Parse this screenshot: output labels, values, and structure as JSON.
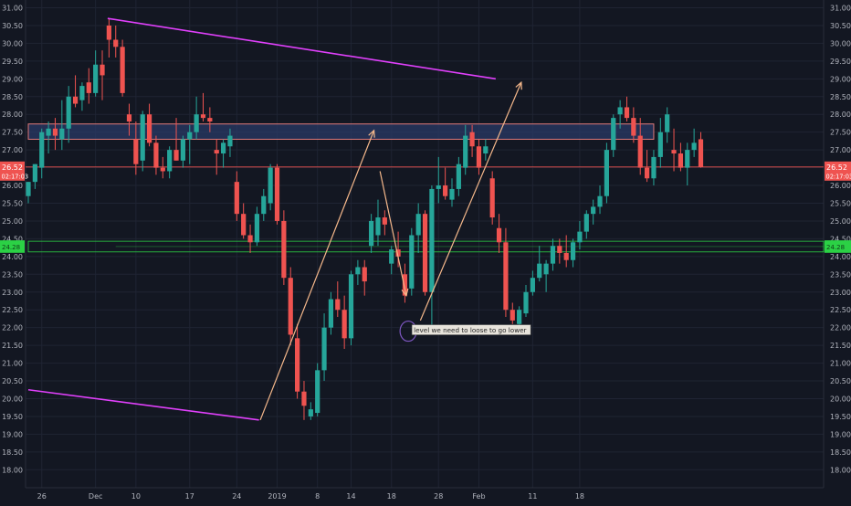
{
  "chart_data": {
    "type": "candlestick",
    "title": "",
    "colors": {
      "background": "#131722",
      "grid": "#1f2433",
      "up": "#26a69a",
      "down": "#ef5350",
      "trendline": "#e040fb",
      "arrow": "#f5b88b",
      "zone_blue_fill": "#2a3a66",
      "zone_blue_border": "#e07a7a",
      "zone_green_border": "#2bd145",
      "price_line": "#ef5350",
      "axis_text": "#b2b5be"
    },
    "y_axis": {
      "ylim": [
        17.5,
        31.25
      ],
      "ticks": [
        "18.00",
        "18.50",
        "19.00",
        "19.50",
        "20.00",
        "20.50",
        "21.00",
        "21.50",
        "22.00",
        "22.50",
        "23.00",
        "23.50",
        "24.00",
        "24.50",
        "25.00",
        "25.50",
        "26.00",
        "26.50",
        "27.00",
        "27.50",
        "28.00",
        "28.50",
        "29.00",
        "29.50",
        "30.00",
        "30.50",
        "31.00"
      ]
    },
    "x_axis": {
      "ticks": [
        {
          "label": "26",
          "index": 2
        },
        {
          "label": "Dec",
          "index": 10
        },
        {
          "label": "10",
          "index": 16
        },
        {
          "label": "17",
          "index": 24
        },
        {
          "label": "24",
          "index": 31
        },
        {
          "label": "2019",
          "index": 37
        },
        {
          "label": "8",
          "index": 43
        },
        {
          "label": "14",
          "index": 48
        },
        {
          "label": "18",
          "index": 54
        },
        {
          "label": "28",
          "index": 61
        },
        {
          "label": "Feb",
          "index": 67
        },
        {
          "label": "11",
          "index": 75
        },
        {
          "label": "18",
          "index": 82
        }
      ]
    },
    "candles": [
      {
        "o": 25.7,
        "h": 26.1,
        "l": 25.5,
        "c": 26.1
      },
      {
        "o": 26.1,
        "h": 26.6,
        "l": 25.9,
        "c": 26.6
      },
      {
        "o": 26.5,
        "h": 27.6,
        "l": 26.2,
        "c": 27.5
      },
      {
        "o": 27.4,
        "h": 27.8,
        "l": 26.9,
        "c": 27.6
      },
      {
        "o": 27.6,
        "h": 27.9,
        "l": 27.0,
        "c": 27.4
      },
      {
        "o": 27.3,
        "h": 28.4,
        "l": 27.0,
        "c": 27.6
      },
      {
        "o": 27.6,
        "h": 28.8,
        "l": 27.2,
        "c": 28.5
      },
      {
        "o": 28.5,
        "h": 29.1,
        "l": 28.2,
        "c": 28.3
      },
      {
        "o": 28.4,
        "h": 28.9,
        "l": 28.1,
        "c": 28.8
      },
      {
        "o": 28.9,
        "h": 29.3,
        "l": 28.3,
        "c": 28.6
      },
      {
        "o": 28.6,
        "h": 29.8,
        "l": 28.5,
        "c": 29.4
      },
      {
        "o": 29.4,
        "h": 29.8,
        "l": 28.4,
        "c": 29.1
      },
      {
        "o": 30.5,
        "h": 30.7,
        "l": 29.6,
        "c": 30.1
      },
      {
        "o": 30.1,
        "h": 30.5,
        "l": 29.6,
        "c": 29.9
      },
      {
        "o": 29.9,
        "h": 30.1,
        "l": 28.5,
        "c": 28.6
      },
      {
        "o": 28.0,
        "h": 28.3,
        "l": 27.4,
        "c": 27.8
      },
      {
        "o": 27.3,
        "h": 27.8,
        "l": 26.3,
        "c": 26.6
      },
      {
        "o": 26.7,
        "h": 28.1,
        "l": 26.4,
        "c": 28.0
      },
      {
        "o": 28.0,
        "h": 28.3,
        "l": 27.1,
        "c": 27.2
      },
      {
        "o": 27.2,
        "h": 27.4,
        "l": 26.3,
        "c": 26.5
      },
      {
        "o": 26.5,
        "h": 26.8,
        "l": 26.2,
        "c": 26.4
      },
      {
        "o": 26.4,
        "h": 27.1,
        "l": 26.2,
        "c": 27.0
      },
      {
        "o": 27.0,
        "h": 27.9,
        "l": 26.7,
        "c": 26.7
      },
      {
        "o": 26.7,
        "h": 27.4,
        "l": 26.5,
        "c": 27.3
      },
      {
        "o": 27.3,
        "h": 27.7,
        "l": 26.6,
        "c": 27.5
      },
      {
        "o": 27.5,
        "h": 28.5,
        "l": 27.3,
        "c": 28.0
      },
      {
        "o": 28.0,
        "h": 28.6,
        "l": 27.8,
        "c": 27.9
      },
      {
        "o": 27.9,
        "h": 28.2,
        "l": 27.5,
        "c": 27.8
      },
      {
        "o": 27.0,
        "h": 27.3,
        "l": 26.3,
        "c": 26.9
      },
      {
        "o": 26.9,
        "h": 27.3,
        "l": 26.5,
        "c": 27.2
      },
      {
        "o": 27.1,
        "h": 27.6,
        "l": 26.8,
        "c": 27.4
      },
      {
        "o": 26.1,
        "h": 26.4,
        "l": 25.0,
        "c": 25.2
      },
      {
        "o": 25.2,
        "h": 25.5,
        "l": 24.5,
        "c": 24.6
      },
      {
        "o": 24.6,
        "h": 24.9,
        "l": 24.1,
        "c": 24.4
      },
      {
        "o": 24.4,
        "h": 25.4,
        "l": 24.3,
        "c": 25.2
      },
      {
        "o": 25.2,
        "h": 25.9,
        "l": 25.0,
        "c": 25.7
      },
      {
        "o": 25.5,
        "h": 26.6,
        "l": 25.3,
        "c": 26.5
      },
      {
        "o": 26.5,
        "h": 26.6,
        "l": 24.9,
        "c": 25.0
      },
      {
        "o": 25.0,
        "h": 25.3,
        "l": 23.2,
        "c": 23.4
      },
      {
        "o": 23.4,
        "h": 23.7,
        "l": 21.5,
        "c": 21.8
      },
      {
        "o": 21.7,
        "h": 22.1,
        "l": 20.0,
        "c": 20.2
      },
      {
        "o": 20.2,
        "h": 20.5,
        "l": 19.4,
        "c": 19.8
      },
      {
        "o": 19.5,
        "h": 19.9,
        "l": 19.4,
        "c": 19.7
      },
      {
        "o": 19.6,
        "h": 21.0,
        "l": 19.5,
        "c": 20.8
      },
      {
        "o": 20.8,
        "h": 22.4,
        "l": 20.5,
        "c": 22.0
      },
      {
        "o": 22.0,
        "h": 23.0,
        "l": 21.8,
        "c": 22.8
      },
      {
        "o": 22.8,
        "h": 23.3,
        "l": 22.3,
        "c": 22.5
      },
      {
        "o": 22.5,
        "h": 22.9,
        "l": 21.4,
        "c": 21.7
      },
      {
        "o": 21.7,
        "h": 23.6,
        "l": 21.5,
        "c": 23.5
      },
      {
        "o": 23.5,
        "h": 23.9,
        "l": 23.2,
        "c": 23.7
      },
      {
        "o": 23.7,
        "h": 23.9,
        "l": 22.9,
        "c": 23.3
      },
      {
        "o": 24.3,
        "h": 25.2,
        "l": 24.1,
        "c": 25.0
      },
      {
        "o": 24.6,
        "h": 25.6,
        "l": 24.3,
        "c": 25.1
      },
      {
        "o": 25.1,
        "h": 25.3,
        "l": 24.6,
        "c": 24.9
      },
      {
        "o": 23.8,
        "h": 24.3,
        "l": 23.5,
        "c": 24.2
      },
      {
        "o": 24.2,
        "h": 24.7,
        "l": 23.7,
        "c": 24.0
      },
      {
        "o": 23.5,
        "h": 23.8,
        "l": 22.7,
        "c": 22.9
      },
      {
        "o": 23.1,
        "h": 24.8,
        "l": 22.9,
        "c": 24.6
      },
      {
        "o": 24.6,
        "h": 25.5,
        "l": 24.1,
        "c": 25.2
      },
      {
        "o": 25.2,
        "h": 25.3,
        "l": 22.9,
        "c": 23.0
      },
      {
        "o": 23.0,
        "h": 26.0,
        "l": 22.0,
        "c": 25.9
      },
      {
        "o": 25.9,
        "h": 26.8,
        "l": 25.5,
        "c": 26.0
      },
      {
        "o": 26.0,
        "h": 26.5,
        "l": 25.6,
        "c": 25.7
      },
      {
        "o": 25.6,
        "h": 26.2,
        "l": 25.4,
        "c": 25.9
      },
      {
        "o": 25.9,
        "h": 26.8,
        "l": 25.7,
        "c": 26.6
      },
      {
        "o": 26.5,
        "h": 27.7,
        "l": 26.3,
        "c": 27.4
      },
      {
        "o": 27.5,
        "h": 27.7,
        "l": 26.8,
        "c": 27.1
      },
      {
        "o": 27.1,
        "h": 27.3,
        "l": 26.3,
        "c": 26.5
      },
      {
        "o": 26.9,
        "h": 27.3,
        "l": 26.7,
        "c": 27.1
      },
      {
        "o": 26.2,
        "h": 26.4,
        "l": 24.9,
        "c": 25.1
      },
      {
        "o": 24.8,
        "h": 25.2,
        "l": 24.1,
        "c": 24.4
      },
      {
        "o": 24.4,
        "h": 24.8,
        "l": 22.3,
        "c": 22.5
      },
      {
        "o": 22.5,
        "h": 22.7,
        "l": 22.1,
        "c": 22.2
      },
      {
        "o": 22.1,
        "h": 22.6,
        "l": 21.9,
        "c": 22.5
      },
      {
        "o": 22.4,
        "h": 23.2,
        "l": 22.3,
        "c": 23.0
      },
      {
        "o": 23.0,
        "h": 23.6,
        "l": 22.9,
        "c": 23.4
      },
      {
        "o": 23.4,
        "h": 24.3,
        "l": 23.3,
        "c": 23.8
      },
      {
        "o": 23.5,
        "h": 23.9,
        "l": 23.0,
        "c": 23.8
      },
      {
        "o": 23.8,
        "h": 24.5,
        "l": 23.6,
        "c": 24.3
      },
      {
        "o": 24.3,
        "h": 24.5,
        "l": 23.8,
        "c": 24.1
      },
      {
        "o": 24.1,
        "h": 24.6,
        "l": 23.7,
        "c": 23.9
      },
      {
        "o": 23.9,
        "h": 24.5,
        "l": 23.7,
        "c": 24.4
      },
      {
        "o": 24.4,
        "h": 25.0,
        "l": 24.2,
        "c": 24.7
      },
      {
        "o": 24.7,
        "h": 25.3,
        "l": 24.5,
        "c": 25.2
      },
      {
        "o": 25.2,
        "h": 25.6,
        "l": 24.9,
        "c": 25.4
      },
      {
        "o": 25.4,
        "h": 26.0,
        "l": 25.2,
        "c": 25.7
      },
      {
        "o": 25.7,
        "h": 27.2,
        "l": 25.5,
        "c": 27.0
      },
      {
        "o": 27.0,
        "h": 28.0,
        "l": 26.8,
        "c": 27.9
      },
      {
        "o": 28.0,
        "h": 28.4,
        "l": 27.6,
        "c": 28.2
      },
      {
        "o": 28.2,
        "h": 28.5,
        "l": 27.8,
        "c": 27.9
      },
      {
        "o": 27.9,
        "h": 28.2,
        "l": 27.2,
        "c": 27.4
      },
      {
        "o": 27.4,
        "h": 27.9,
        "l": 26.3,
        "c": 26.5
      },
      {
        "o": 26.5,
        "h": 27.0,
        "l": 26.1,
        "c": 26.2
      },
      {
        "o": 26.2,
        "h": 27.0,
        "l": 26.0,
        "c": 26.8
      },
      {
        "o": 26.8,
        "h": 27.9,
        "l": 26.5,
        "c": 27.5
      },
      {
        "o": 27.5,
        "h": 28.2,
        "l": 27.2,
        "c": 28.0
      },
      {
        "o": 27.0,
        "h": 27.6,
        "l": 26.4,
        "c": 26.9
      },
      {
        "o": 26.9,
        "h": 27.2,
        "l": 26.4,
        "c": 26.5
      },
      {
        "o": 26.5,
        "h": 27.2,
        "l": 26.0,
        "c": 27.0
      },
      {
        "o": 27.0,
        "h": 27.6,
        "l": 26.8,
        "c": 27.2
      },
      {
        "o": 27.3,
        "h": 27.5,
        "l": 26.5,
        "c": 26.52
      }
    ],
    "current_price": {
      "value": 26.52,
      "label": "26.52",
      "countdown": "02:17:03"
    },
    "zones": [
      {
        "name": "resistance-zone",
        "y1": 27.3,
        "y2": 27.73,
        "start_index": 0,
        "end_index": 93
      },
      {
        "name": "support-zone",
        "y1": 24.13,
        "y2": 24.43,
        "start_index": 0,
        "end_index": null,
        "axis_label": "24.28"
      }
    ],
    "trendlines": [
      {
        "name": "upper-trendline",
        "from": {
          "i": 11.8,
          "v": 30.7
        },
        "to": {
          "i": 69.5,
          "v": 29.0
        }
      },
      {
        "name": "lower-trendline",
        "from": {
          "i": 0,
          "v": 20.25
        },
        "to": {
          "i": 34.3,
          "v": 19.4
        }
      }
    ],
    "arrows": [
      {
        "name": "rally-arrow-1",
        "from": {
          "i": 34.5,
          "v": 19.4
        },
        "to": {
          "i": 51.4,
          "v": 27.55
        }
      },
      {
        "name": "drop-arrow",
        "from": {
          "i": 52.3,
          "v": 26.4
        },
        "to": {
          "i": 56.2,
          "v": 22.9
        }
      },
      {
        "name": "rally-arrow-2",
        "from": {
          "i": 58.3,
          "v": 22.2
        },
        "to": {
          "i": 73.3,
          "v": 28.9
        }
      }
    ],
    "annotation": {
      "text": "level we need to loose to go lower",
      "at": {
        "i": 56.5,
        "v": 21.9
      }
    }
  }
}
